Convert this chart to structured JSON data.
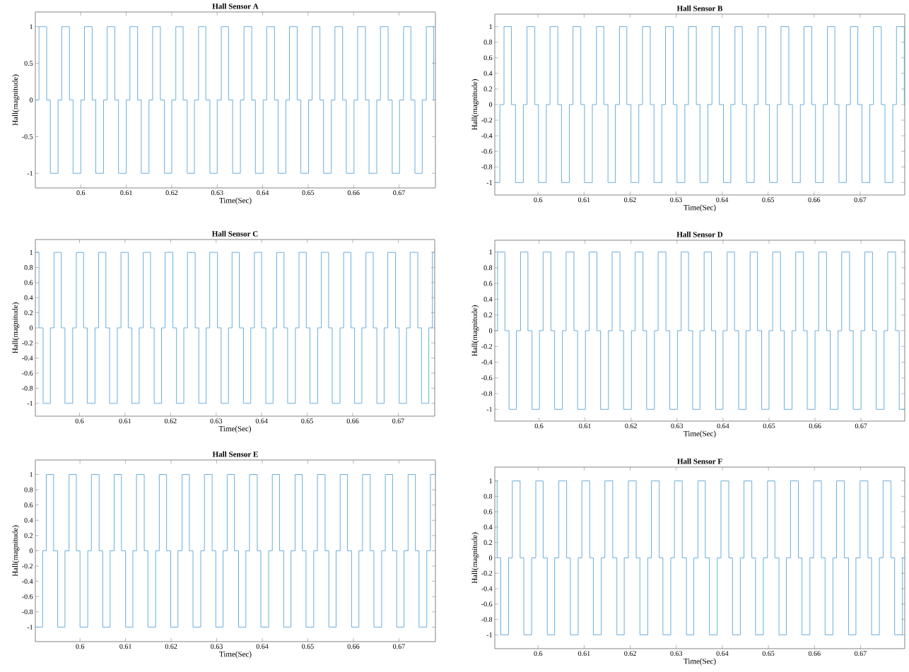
{
  "chart_data": [
    {
      "type": "step",
      "title": "Hall Sensor A",
      "xlabel": "Time(Sec)",
      "ylabel": "Hall(magnitude)",
      "color": "#5aa5d8",
      "xlim": [
        0.59,
        0.678
      ],
      "ylim": [
        -1.2,
        1.2
      ],
      "xticks": [
        0.6,
        0.61,
        0.62,
        0.63,
        0.64,
        0.65,
        0.66,
        0.67
      ],
      "yticks": [
        -1,
        -0.5,
        0,
        0.5,
        1
      ],
      "x": [
        0.59,
        0.5908,
        0.5925,
        0.5933,
        0.595,
        0.5958,
        0.5975,
        0.5983,
        0.6,
        0.6008,
        0.6025,
        0.6033,
        0.605,
        0.6058,
        0.6075,
        0.6083,
        0.61,
        0.6108,
        0.6125,
        0.6133,
        0.615,
        0.6158,
        0.6175,
        0.6184,
        0.62,
        0.6209,
        0.6225,
        0.6234,
        0.625,
        0.6259,
        0.6275,
        0.6284,
        0.63,
        0.6309,
        0.6325,
        0.6334,
        0.6351,
        0.6359,
        0.6376,
        0.6384,
        0.6401,
        0.6409,
        0.6426,
        0.6434,
        0.6451,
        0.6459,
        0.6476,
        0.6484,
        0.6501,
        0.6509,
        0.6526,
        0.6534,
        0.6551,
        0.6559,
        0.6576,
        0.6584,
        0.6601,
        0.6609,
        0.6626,
        0.6634,
        0.6651,
        0.6659,
        0.6676,
        0.6685,
        0.6701,
        0.671,
        0.6726,
        0.6735,
        0.6751,
        0.676,
        0.6776,
        0.678
      ],
      "values": [
        0,
        1,
        0,
        -1,
        0,
        1,
        0,
        -1,
        0,
        1,
        0,
        -1,
        0,
        1,
        0,
        -1,
        0,
        1,
        0,
        -1,
        0,
        1,
        0,
        -1,
        0,
        1,
        0,
        -1,
        0,
        1,
        0,
        -1,
        0,
        1,
        0,
        -1,
        0,
        1,
        0,
        -1,
        0,
        1,
        0,
        -1,
        0,
        1,
        0,
        -1,
        0,
        1,
        0,
        -1,
        0,
        1,
        0,
        -1,
        0,
        1,
        0,
        -1,
        0,
        1,
        0,
        -1,
        0,
        1,
        0,
        -1,
        0,
        1,
        0,
        0
      ]
    },
    {
      "type": "step",
      "title": "Hall Sensor B",
      "xlabel": "Time(Sec)",
      "ylabel": "Hall(magnitude)",
      "color": "#5aa5d8",
      "xlim": [
        0.5906,
        0.6797
      ],
      "ylim": [
        -1.16,
        1.16
      ],
      "xticks": [
        0.6,
        0.61,
        0.62,
        0.63,
        0.64,
        0.65,
        0.66,
        0.67
      ],
      "yticks": [
        -1,
        -0.8,
        -0.6,
        -0.4,
        -0.2,
        0,
        0.2,
        0.4,
        0.6,
        0.8,
        1
      ],
      "x": [
        0.5906,
        0.5917,
        0.5926,
        0.5942,
        0.5951,
        0.5968,
        0.5976,
        0.5993,
        0.6001,
        0.6018,
        0.6026,
        0.6043,
        0.6051,
        0.6068,
        0.6076,
        0.6093,
        0.6101,
        0.6118,
        0.6127,
        0.6143,
        0.6152,
        0.6168,
        0.6177,
        0.6193,
        0.6202,
        0.6219,
        0.6227,
        0.6244,
        0.6252,
        0.6269,
        0.6277,
        0.6294,
        0.6302,
        0.6319,
        0.6327,
        0.6344,
        0.6352,
        0.6369,
        0.6378,
        0.6394,
        0.6403,
        0.6419,
        0.6428,
        0.6444,
        0.6453,
        0.647,
        0.6478,
        0.6495,
        0.6503,
        0.652,
        0.6528,
        0.6545,
        0.6553,
        0.657,
        0.6578,
        0.6595,
        0.6603,
        0.662,
        0.6629,
        0.6645,
        0.6654,
        0.667,
        0.6679,
        0.6695,
        0.6704,
        0.6721,
        0.6729,
        0.6746,
        0.6754,
        0.6771,
        0.6779,
        0.6796,
        0.6797
      ],
      "values": [
        -1,
        0,
        1,
        0,
        -1,
        0,
        1,
        0,
        -1,
        0,
        1,
        0,
        -1,
        0,
        1,
        0,
        -1,
        0,
        1,
        0,
        -1,
        0,
        1,
        0,
        -1,
        0,
        1,
        0,
        -1,
        0,
        1,
        0,
        -1,
        0,
        1,
        0,
        -1,
        0,
        1,
        0,
        -1,
        0,
        1,
        0,
        -1,
        0,
        1,
        0,
        -1,
        0,
        1,
        0,
        -1,
        0,
        1,
        0,
        -1,
        0,
        1,
        0,
        -1,
        0,
        1,
        0,
        -1,
        0,
        1,
        0,
        -1,
        0,
        1,
        0,
        0
      ]
    },
    {
      "type": "step",
      "title": "Hall Sensor C",
      "xlabel": "Time(Sec)",
      "ylabel": "Hall(magnitude)",
      "color": "#5aa5d8",
      "xlim": [
        0.5903,
        0.678
      ],
      "ylim": [
        -1.17,
        1.17
      ],
      "xticks": [
        0.6,
        0.61,
        0.62,
        0.63,
        0.64,
        0.65,
        0.66,
        0.67
      ],
      "yticks": [
        -1,
        -0.8,
        -0.6,
        -0.4,
        -0.2,
        0,
        0.2,
        0.4,
        0.6,
        0.8,
        1
      ],
      "x": [
        0.5903,
        0.5911,
        0.592,
        0.5936,
        0.5944,
        0.596,
        0.5968,
        0.5985,
        0.5993,
        0.6009,
        0.6017,
        0.6034,
        0.6042,
        0.6058,
        0.6066,
        0.6083,
        0.6091,
        0.6107,
        0.6115,
        0.6131,
        0.614,
        0.6156,
        0.6164,
        0.618,
        0.6188,
        0.6205,
        0.6213,
        0.6229,
        0.6237,
        0.6254,
        0.6262,
        0.6278,
        0.6286,
        0.6303,
        0.6311,
        0.6327,
        0.6335,
        0.6351,
        0.636,
        0.6376,
        0.6384,
        0.64,
        0.6409,
        0.6425,
        0.6433,
        0.6449,
        0.6457,
        0.6474,
        0.6482,
        0.6498,
        0.6506,
        0.6523,
        0.6531,
        0.6547,
        0.6555,
        0.6572,
        0.658,
        0.6596,
        0.6604,
        0.662,
        0.6629,
        0.6645,
        0.6653,
        0.6669,
        0.6677,
        0.6694,
        0.6702,
        0.6718,
        0.6726,
        0.6743,
        0.6751,
        0.6767,
        0.6775,
        0.678
      ],
      "values": [
        1,
        0,
        -1,
        0,
        1,
        0,
        -1,
        0,
        1,
        0,
        -1,
        0,
        1,
        0,
        -1,
        0,
        1,
        0,
        -1,
        0,
        1,
        0,
        -1,
        0,
        1,
        0,
        -1,
        0,
        1,
        0,
        -1,
        0,
        1,
        0,
        -1,
        0,
        1,
        0,
        -1,
        0,
        1,
        0,
        -1,
        0,
        1,
        0,
        -1,
        0,
        1,
        0,
        -1,
        0,
        1,
        0,
        -1,
        0,
        1,
        0,
        -1,
        0,
        1,
        0,
        -1,
        0,
        1,
        0,
        -1,
        0,
        1,
        0,
        -1,
        0,
        1,
        1
      ]
    },
    {
      "type": "step",
      "title": "Hall Sensor D",
      "xlabel": "Time(Sec)",
      "ylabel": "Hall(magnitude)",
      "color": "#5aa5d8",
      "xlim": [
        0.5904,
        0.6795
      ],
      "ylim": [
        -1.15,
        1.15
      ],
      "xticks": [
        0.6,
        0.61,
        0.62,
        0.63,
        0.64,
        0.65,
        0.66,
        0.67
      ],
      "yticks": [
        -1,
        -0.8,
        -0.6,
        -0.4,
        -0.2,
        0,
        0.2,
        0.4,
        0.6,
        0.8,
        1
      ],
      "x": [
        0.5904,
        0.591,
        0.5926,
        0.5935,
        0.5951,
        0.596,
        0.5976,
        0.5985,
        0.6001,
        0.6009,
        0.6026,
        0.6034,
        0.6051,
        0.6059,
        0.6076,
        0.6084,
        0.6101,
        0.6109,
        0.6126,
        0.6134,
        0.6151,
        0.6159,
        0.6176,
        0.6184,
        0.6201,
        0.6209,
        0.6226,
        0.6234,
        0.6251,
        0.6259,
        0.6276,
        0.6284,
        0.6301,
        0.6309,
        0.6325,
        0.6334,
        0.635,
        0.6359,
        0.6375,
        0.6384,
        0.64,
        0.6409,
        0.6425,
        0.6434,
        0.645,
        0.6459,
        0.6475,
        0.6484,
        0.65,
        0.6508,
        0.6525,
        0.6533,
        0.655,
        0.6558,
        0.6575,
        0.6583,
        0.66,
        0.6608,
        0.6625,
        0.6633,
        0.665,
        0.6658,
        0.6675,
        0.6683,
        0.67,
        0.6708,
        0.6725,
        0.6733,
        0.675,
        0.6758,
        0.6775,
        0.6783,
        0.6795
      ],
      "values": [
        0,
        1,
        0,
        -1,
        0,
        1,
        0,
        -1,
        0,
        1,
        0,
        -1,
        0,
        1,
        0,
        -1,
        0,
        1,
        0,
        -1,
        0,
        1,
        0,
        -1,
        0,
        1,
        0,
        -1,
        0,
        1,
        0,
        -1,
        0,
        1,
        0,
        -1,
        0,
        1,
        0,
        -1,
        0,
        1,
        0,
        -1,
        0,
        1,
        0,
        -1,
        0,
        1,
        0,
        -1,
        0,
        1,
        0,
        -1,
        0,
        1,
        0,
        -1,
        0,
        1,
        0,
        -1,
        0,
        1,
        0,
        -1,
        0,
        1,
        0,
        -1,
        -1
      ]
    },
    {
      "type": "step",
      "title": "Hall Sensor E",
      "xlabel": "Time(Sec)",
      "ylabel": "Hall(magnitude)",
      "color": "#5aa5d8",
      "xlim": [
        0.5902,
        0.678
      ],
      "ylim": [
        -1.19,
        1.19
      ],
      "xticks": [
        0.6,
        0.61,
        0.62,
        0.63,
        0.64,
        0.65,
        0.66,
        0.67
      ],
      "yticks": [
        -1,
        -0.8,
        -0.6,
        -0.4,
        -0.2,
        0,
        0.2,
        0.4,
        0.6,
        0.8,
        1
      ],
      "x": [
        0.5902,
        0.5918,
        0.5926,
        0.5942,
        0.5951,
        0.5967,
        0.5976,
        0.5992,
        0.6,
        0.6017,
        0.6025,
        0.6042,
        0.605,
        0.6066,
        0.6075,
        0.6091,
        0.61,
        0.6116,
        0.6124,
        0.6141,
        0.6149,
        0.6166,
        0.6174,
        0.619,
        0.6199,
        0.6215,
        0.6224,
        0.624,
        0.6248,
        0.6265,
        0.6273,
        0.629,
        0.6298,
        0.6314,
        0.6323,
        0.6339,
        0.6348,
        0.6364,
        0.6372,
        0.6389,
        0.6397,
        0.6414,
        0.6422,
        0.6438,
        0.6447,
        0.6463,
        0.6472,
        0.6488,
        0.6496,
        0.6513,
        0.6521,
        0.6538,
        0.6546,
        0.6562,
        0.6571,
        0.6587,
        0.6596,
        0.6612,
        0.662,
        0.6637,
        0.6645,
        0.6662,
        0.667,
        0.6686,
        0.6695,
        0.6711,
        0.672,
        0.6736,
        0.6744,
        0.6761,
        0.6769,
        0.678
      ],
      "values": [
        -1,
        0,
        1,
        0,
        -1,
        0,
        1,
        0,
        -1,
        0,
        1,
        0,
        -1,
        0,
        1,
        0,
        -1,
        0,
        1,
        0,
        -1,
        0,
        1,
        0,
        -1,
        0,
        1,
        0,
        -1,
        0,
        1,
        0,
        -1,
        0,
        1,
        0,
        -1,
        0,
        1,
        0,
        -1,
        0,
        1,
        0,
        -1,
        0,
        1,
        0,
        -1,
        0,
        1,
        0,
        -1,
        0,
        1,
        0,
        -1,
        0,
        1,
        0,
        -1,
        0,
        1,
        0,
        -1,
        0,
        1,
        0,
        -1,
        0,
        1,
        1
      ]
    },
    {
      "type": "step",
      "title": "Hall Sensor F",
      "xlabel": "Time(Sec)",
      "ylabel": "Hall(magnitude)",
      "color": "#5aa5d8",
      "xlim": [
        0.5906,
        0.6796
      ],
      "ylim": [
        -1.18,
        1.18
      ],
      "xticks": [
        0.6,
        0.61,
        0.62,
        0.63,
        0.64,
        0.65,
        0.66,
        0.67
      ],
      "yticks": [
        -1,
        -0.8,
        -0.6,
        -0.4,
        -0.2,
        0,
        0.2,
        0.4,
        0.6,
        0.8,
        1
      ],
      "x": [
        0.5906,
        0.5911,
        0.5919,
        0.5936,
        0.5944,
        0.5961,
        0.5969,
        0.5986,
        0.5995,
        0.6011,
        0.602,
        0.6036,
        0.6045,
        0.6062,
        0.607,
        0.6087,
        0.6095,
        0.6112,
        0.612,
        0.6137,
        0.6145,
        0.6162,
        0.6171,
        0.6187,
        0.6196,
        0.6213,
        0.6221,
        0.6238,
        0.6246,
        0.6263,
        0.6271,
        0.6288,
        0.6296,
        0.6313,
        0.6322,
        0.6338,
        0.6347,
        0.6363,
        0.6372,
        0.6389,
        0.6397,
        0.6414,
        0.6422,
        0.6439,
        0.6447,
        0.6464,
        0.6472,
        0.6489,
        0.6498,
        0.6514,
        0.6523,
        0.6539,
        0.6548,
        0.6565,
        0.6573,
        0.659,
        0.6598,
        0.6615,
        0.6623,
        0.664,
        0.6648,
        0.6665,
        0.6674,
        0.669,
        0.6699,
        0.6716,
        0.6724,
        0.6741,
        0.6749,
        0.6766,
        0.6774,
        0.6791,
        0.6796
      ],
      "values": [
        1,
        0,
        -1,
        0,
        1,
        0,
        -1,
        0,
        1,
        0,
        -1,
        0,
        1,
        0,
        -1,
        0,
        1,
        0,
        -1,
        0,
        1,
        0,
        -1,
        0,
        1,
        0,
        -1,
        0,
        1,
        0,
        -1,
        0,
        1,
        0,
        -1,
        0,
        1,
        0,
        -1,
        0,
        1,
        0,
        -1,
        0,
        1,
        0,
        -1,
        0,
        1,
        0,
        -1,
        0,
        1,
        0,
        -1,
        0,
        1,
        0,
        -1,
        0,
        1,
        0,
        -1,
        0,
        1,
        0,
        -1,
        0,
        1,
        0,
        -1,
        0,
        0
      ]
    }
  ]
}
